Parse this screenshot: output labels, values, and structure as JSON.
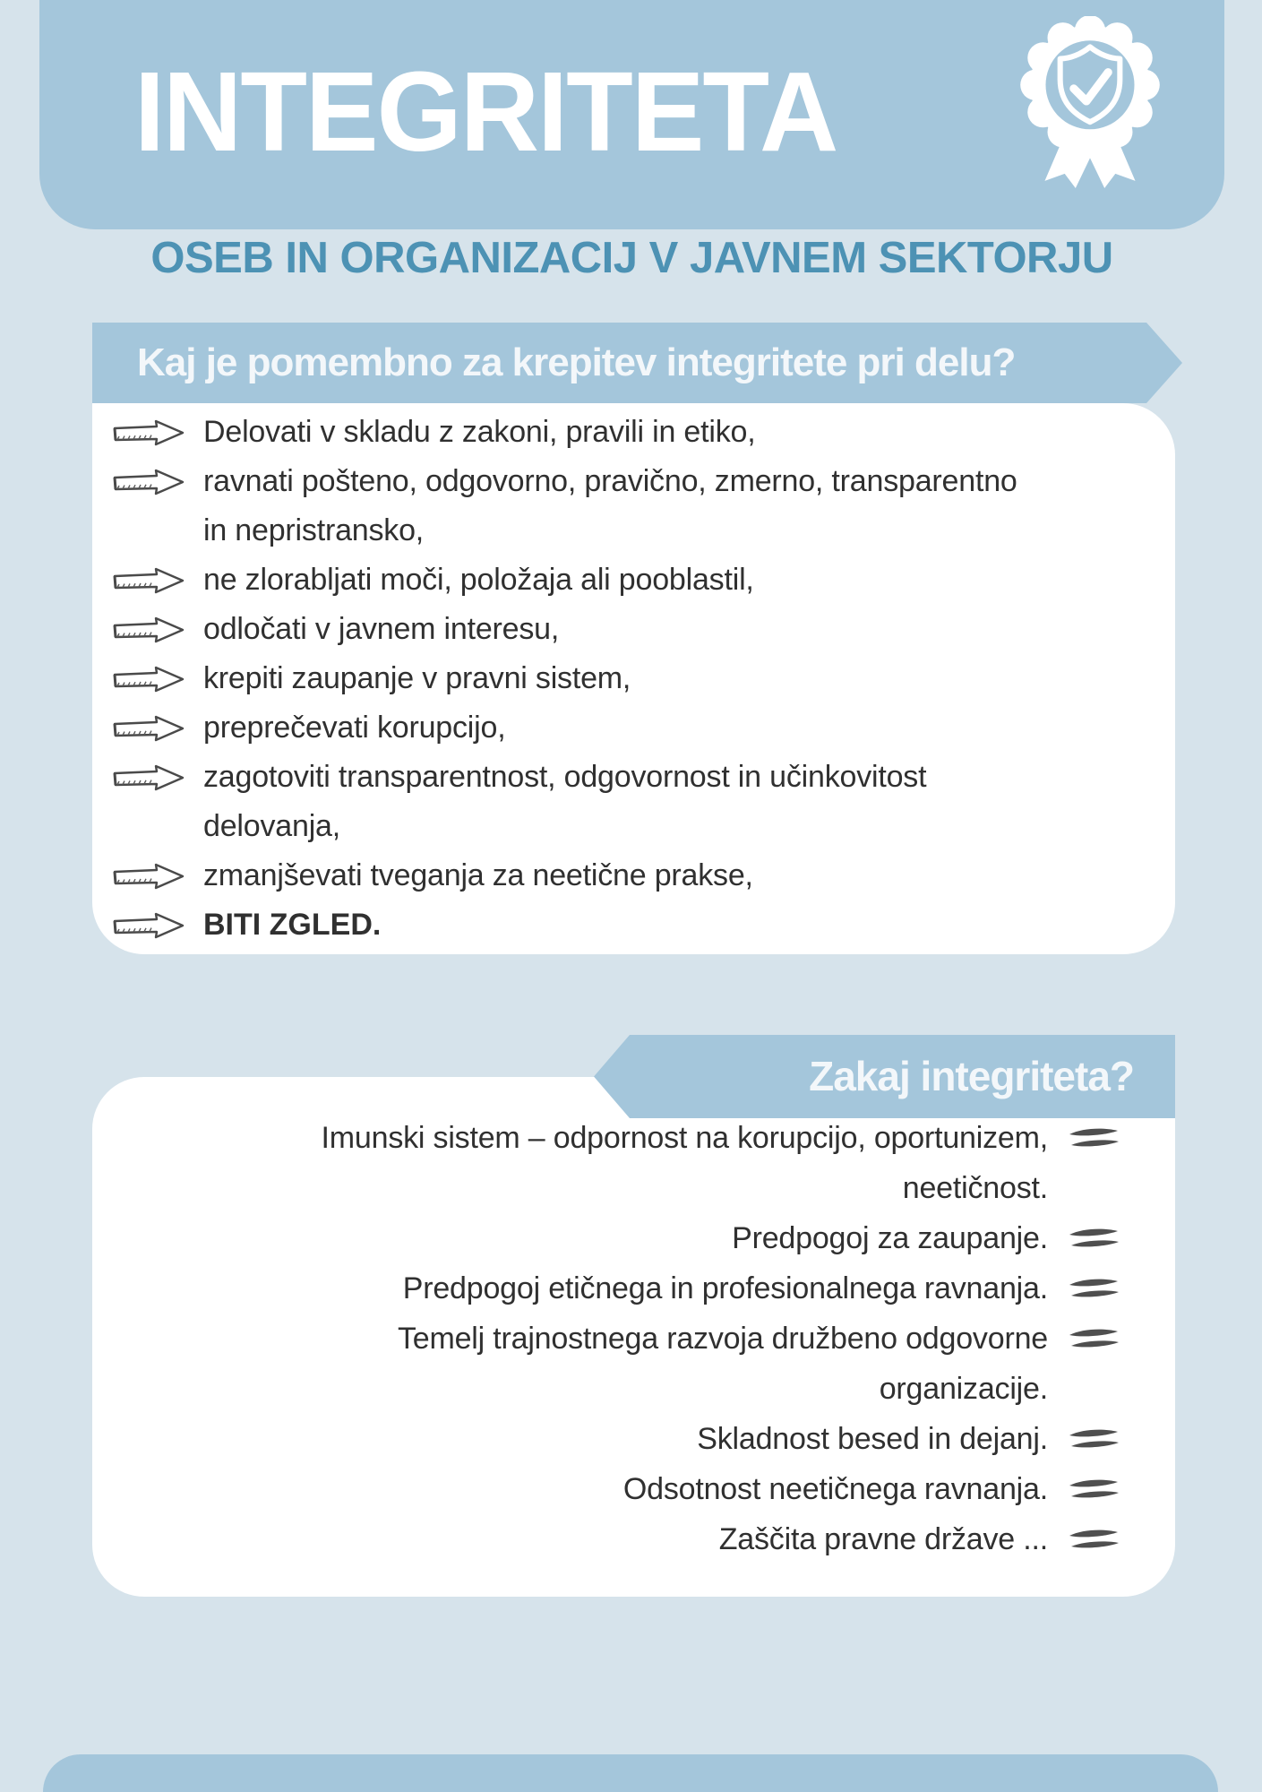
{
  "page": {
    "background_color": "#d6e3eb",
    "accent_color": "#a4c6db",
    "subtitle_color": "#4d92b4",
    "body_text_color": "#303030",
    "doodle_icon_color": "#4f4f4f"
  },
  "header": {
    "title": "INTEGRITETA",
    "badge_icon": "rosette-shield-check-icon",
    "subtitle": "OSEB IN ORGANIZACIJ V JAVNEM SEKTORJU"
  },
  "section1": {
    "banner_label": "Kaj je pomembno za krepitev integritete pri delu?",
    "bullet_icon": "doodle-arrow-icon",
    "items": [
      {
        "lines": [
          "Delovati v skladu z zakoni, pravili in etiko,"
        ],
        "bold": false
      },
      {
        "lines": [
          "ravnati pošteno, odgovorno, pravično, zmerno, transparentno",
          "in nepristransko,"
        ],
        "bold": false
      },
      {
        "lines": [
          "ne zlorabljati moči, položaja ali pooblastil,"
        ],
        "bold": false
      },
      {
        "lines": [
          "odločati v javnem interesu,"
        ],
        "bold": false
      },
      {
        "lines": [
          "krepiti zaupanje v pravni sistem,"
        ],
        "bold": false
      },
      {
        "lines": [
          "preprečevati korupcijo,"
        ],
        "bold": false
      },
      {
        "lines": [
          "zagotoviti transparentnost, odgovornost in učinkovitost",
          "delovanja,"
        ],
        "bold": false
      },
      {
        "lines": [
          "zmanjševati tveganja za neetične prakse,"
        ],
        "bold": false
      },
      {
        "lines": [
          "BITI ZGLED."
        ],
        "bold": true
      }
    ]
  },
  "section2": {
    "banner_label": "Zakaj integriteta?",
    "bullet_icon": "equals-doodle-icon",
    "items": [
      {
        "lines": [
          "Imunski sistem – odpornost na korupcijo, oportunizem,",
          "neetičnost."
        ]
      },
      {
        "lines": [
          "Predpogoj za zaupanje."
        ]
      },
      {
        "lines": [
          "Predpogoj etičnega in profesionalnega ravnanja."
        ]
      },
      {
        "lines": [
          "Temelj trajnostnega razvoja družbeno odgovorne",
          "organizacije."
        ]
      },
      {
        "lines": [
          "Skladnost besed in dejanj."
        ]
      },
      {
        "lines": [
          "Odsotnost neetičnega ravnanja."
        ]
      },
      {
        "lines": [
          "Zaščita pravne države ..."
        ]
      }
    ]
  }
}
